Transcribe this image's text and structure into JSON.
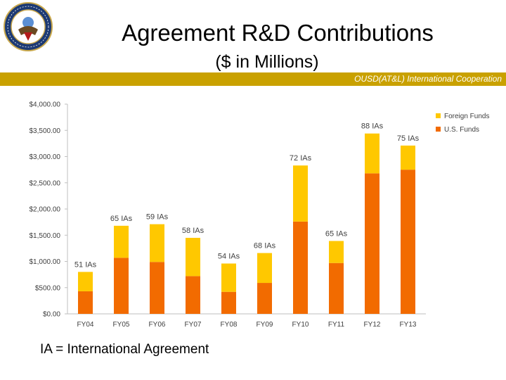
{
  "header": {
    "title": "Agreement R&D Contributions",
    "subtitle": "($ in Millions)",
    "banner_text": "OUSD(AT&L) International Cooperation",
    "banner_color": "#c9a100",
    "seal_icon": "department-of-defense-seal"
  },
  "footnote": "IA = International Agreement",
  "chart_data": {
    "type": "bar",
    "stacked": true,
    "categories": [
      "FY04",
      "FY05",
      "FY06",
      "FY07",
      "FY08",
      "FY09",
      "FY10",
      "FY11",
      "FY12",
      "FY13"
    ],
    "series": [
      {
        "name": "U.S. Funds",
        "color": "#f26b00",
        "values": [
          430,
          1070,
          990,
          720,
          420,
          590,
          1760,
          970,
          2680,
          2750
        ]
      },
      {
        "name": "Foreign Funds",
        "color": "#ffc800",
        "values": [
          370,
          610,
          720,
          730,
          540,
          570,
          1070,
          420,
          760,
          460
        ]
      }
    ],
    "bar_labels": [
      "51 IAs",
      "65 IAs",
      "59 IAs",
      "58 IAs",
      "54 IAs",
      "68 IAs",
      "72 IAs",
      "65 IAs",
      "88 IAs",
      "75 IAs"
    ],
    "y_ticks": [
      "$0.00",
      "$500.00",
      "$1,000.00",
      "$1,500.00",
      "$2,000.00",
      "$2,500.00",
      "$3,000.00",
      "$3,500.00",
      "$4,000.00"
    ],
    "ylim": [
      0,
      4000
    ],
    "grid": false,
    "legend": [
      "Foreign Funds",
      "U.S. Funds"
    ],
    "legend_position": "right"
  }
}
